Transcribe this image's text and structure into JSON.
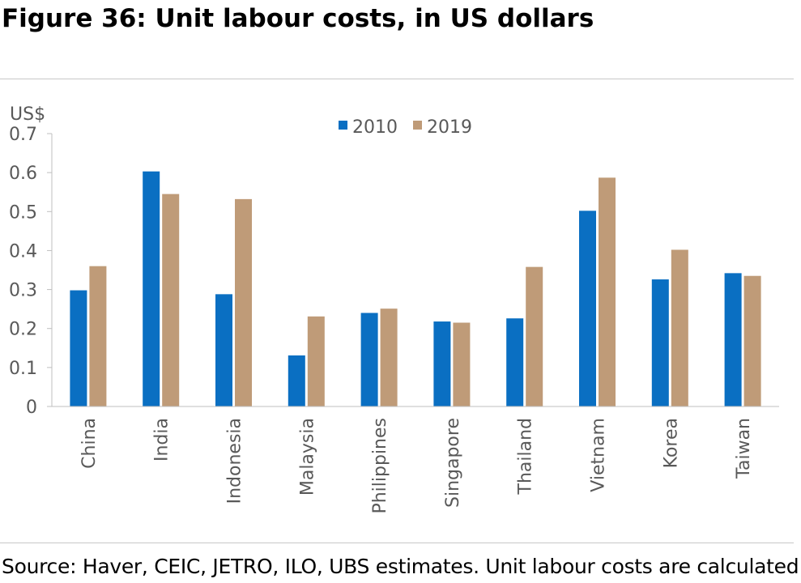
{
  "figure": {
    "title": "Figure 36: Unit labour costs, in US dollars",
    "source": "Source: Haver, CEIC, JETRO, ILO, UBS estimates. Unit labour costs are calculated by"
  },
  "chart_data": {
    "type": "bar",
    "title": "",
    "ylabel": "US$",
    "xlabel": "",
    "ylim": [
      0,
      0.7
    ],
    "yticks": [
      "0",
      "0.1",
      "0.2",
      "0.3",
      "0.4",
      "0.5",
      "0.6",
      "0.7"
    ],
    "grid": false,
    "legend_position": "top-center",
    "categories": [
      "China",
      "India",
      "Indonesia",
      "Malaysia",
      "Philippines",
      "Singapore",
      "Thailand",
      "Vietnam",
      "Korea",
      "Taiwan"
    ],
    "series": [
      {
        "name": "2010",
        "color": "#0a6fc2",
        "values": [
          0.298,
          0.603,
          0.288,
          0.131,
          0.24,
          0.218,
          0.226,
          0.502,
          0.326,
          0.342
        ]
      },
      {
        "name": "2019",
        "color": "#bf9b78",
        "values": [
          0.36,
          0.545,
          0.532,
          0.231,
          0.251,
          0.215,
          0.358,
          0.587,
          0.402,
          0.335
        ]
      }
    ]
  }
}
